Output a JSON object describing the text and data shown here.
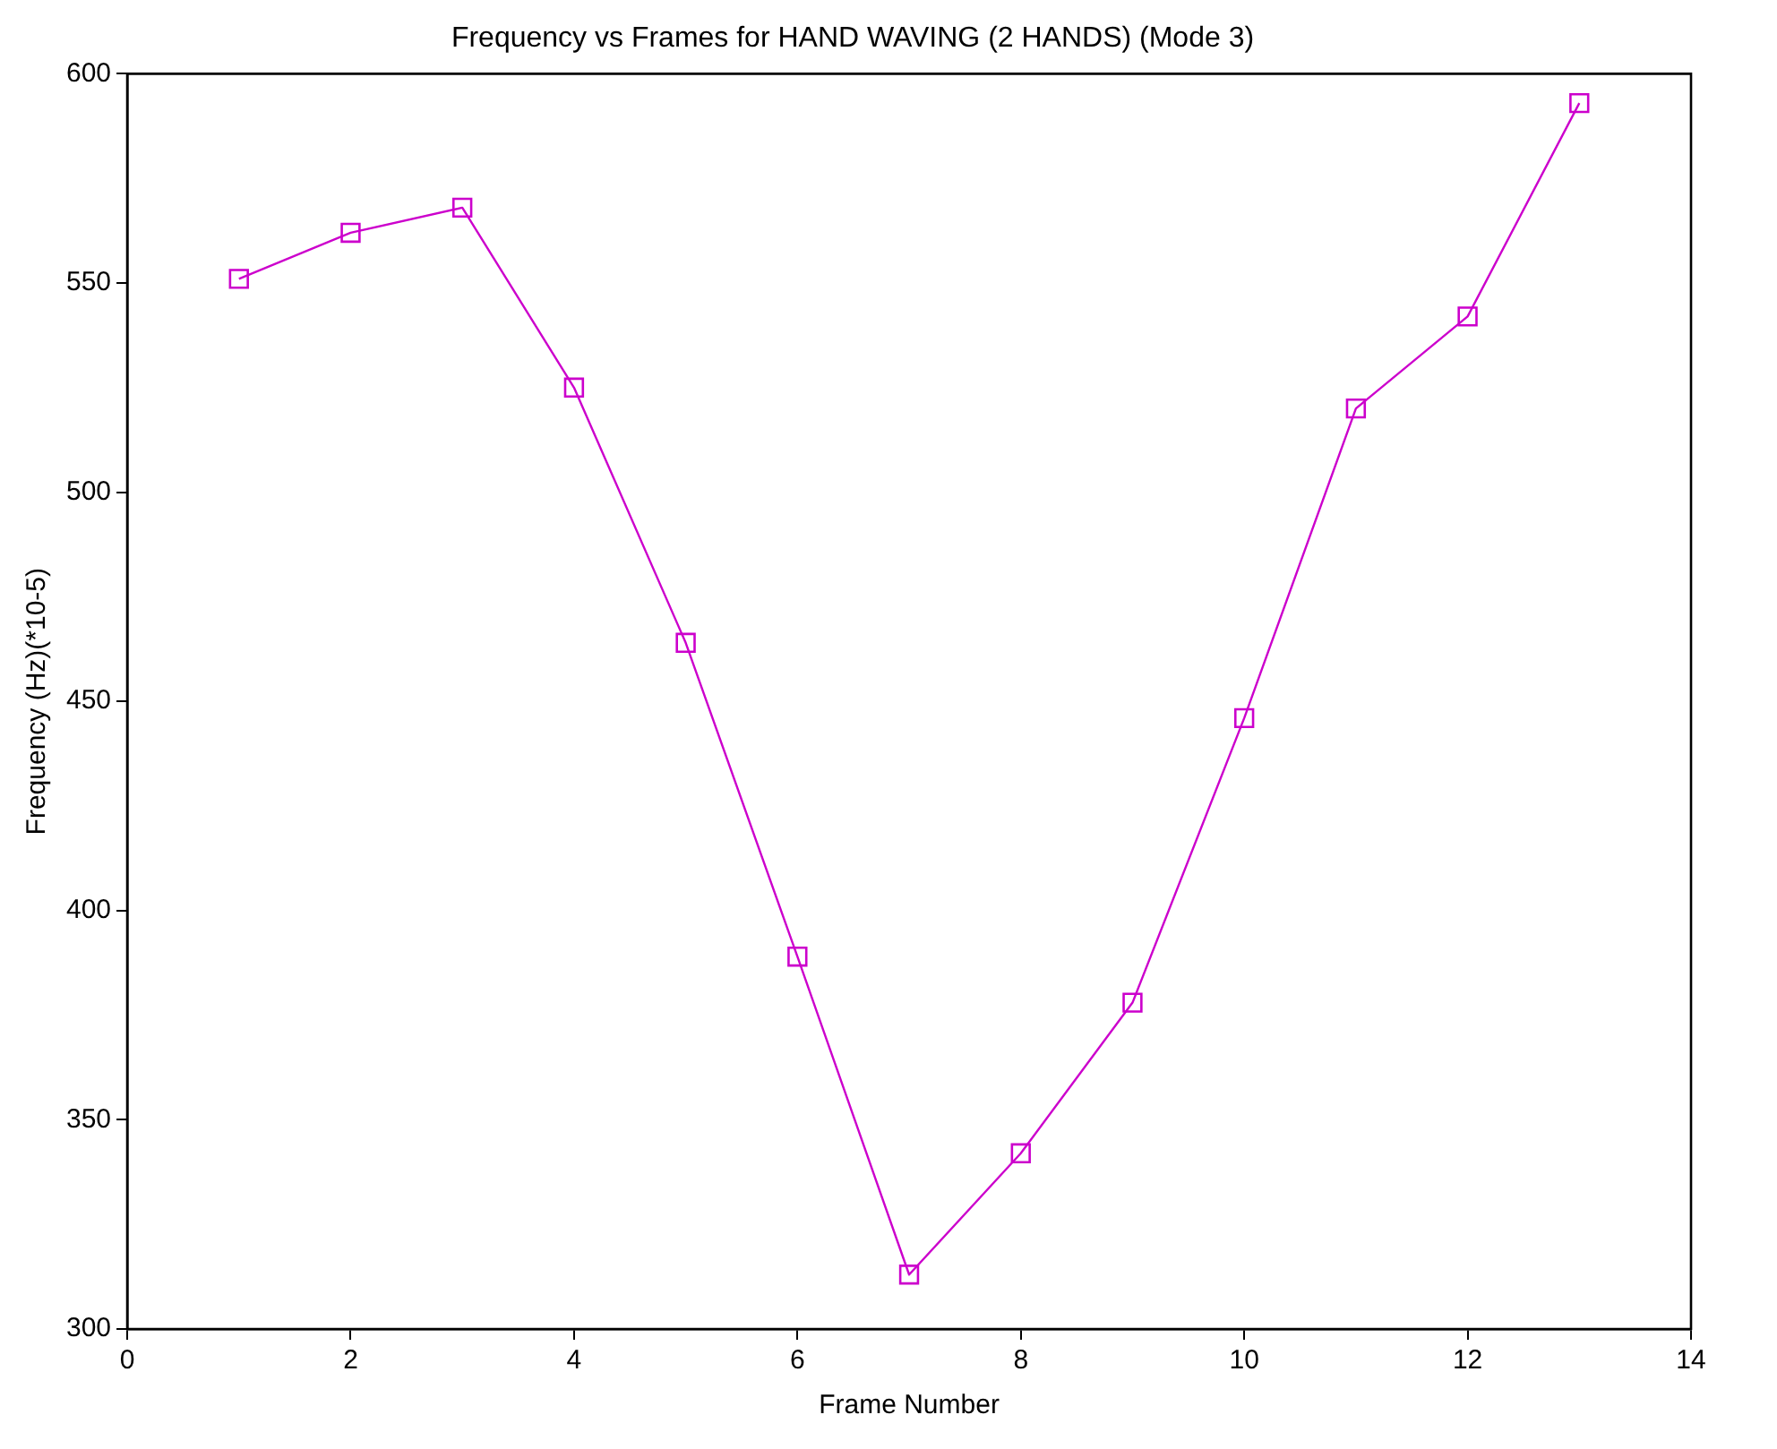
{
  "chart_data": {
    "type": "line",
    "title": "Frequency vs Frames for HAND WAVING (2 HANDS) (Mode 3)",
    "xlabel": "Frame Number",
    "ylabel": "Frequency (Hz)(*10-5)",
    "x": [
      1,
      2,
      3,
      4,
      5,
      6,
      7,
      8,
      9,
      10,
      11,
      12,
      13
    ],
    "series": [
      {
        "color": "#cc00cc",
        "values": [
          551,
          562,
          568,
          525,
          464,
          389,
          313,
          342,
          378,
          446,
          520,
          542,
          593
        ]
      }
    ],
    "xlim": [
      0,
      14
    ],
    "xticks": [
      0,
      2,
      4,
      6,
      8,
      10,
      12,
      14
    ],
    "ylim": [
      300,
      600
    ],
    "yticks": [
      300,
      350,
      400,
      450,
      500,
      550,
      600
    ],
    "grid": false,
    "legend": false,
    "marker": "square",
    "line_style": "solid"
  }
}
